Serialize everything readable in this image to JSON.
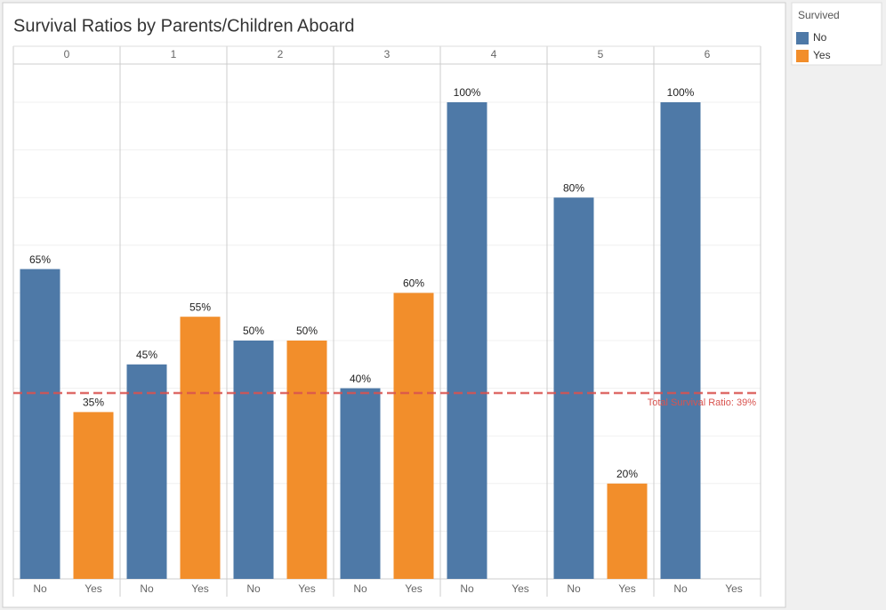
{
  "chart_data": {
    "type": "bar",
    "title": "Survival Ratios by Parents/Children Aboard",
    "categories": [
      "0",
      "1",
      "2",
      "3",
      "4",
      "5",
      "6"
    ],
    "series": [
      {
        "name": "No",
        "color": "#4e79a7",
        "values": [
          65,
          45,
          50,
          40,
          100,
          80,
          100
        ],
        "value_labels": [
          "65%",
          "45%",
          "50%",
          "40%",
          "100%",
          "80%",
          "100%"
        ]
      },
      {
        "name": "Yes",
        "color": "#f28e2b",
        "values": [
          35,
          55,
          50,
          60,
          null,
          20,
          null
        ],
        "value_labels": [
          "35%",
          "55%",
          "50%",
          "60%",
          null,
          "20%",
          null
        ]
      }
    ],
    "ylim": [
      0,
      100
    ],
    "yticks": [
      0,
      10,
      20,
      30,
      40,
      50,
      60,
      70,
      80,
      90,
      100
    ],
    "grid": true,
    "legend": {
      "title": "Survived",
      "position": "right"
    },
    "reference_line": {
      "value": 39,
      "label": "Total Survival Ratio: 39%",
      "color": "#d9534f"
    }
  }
}
